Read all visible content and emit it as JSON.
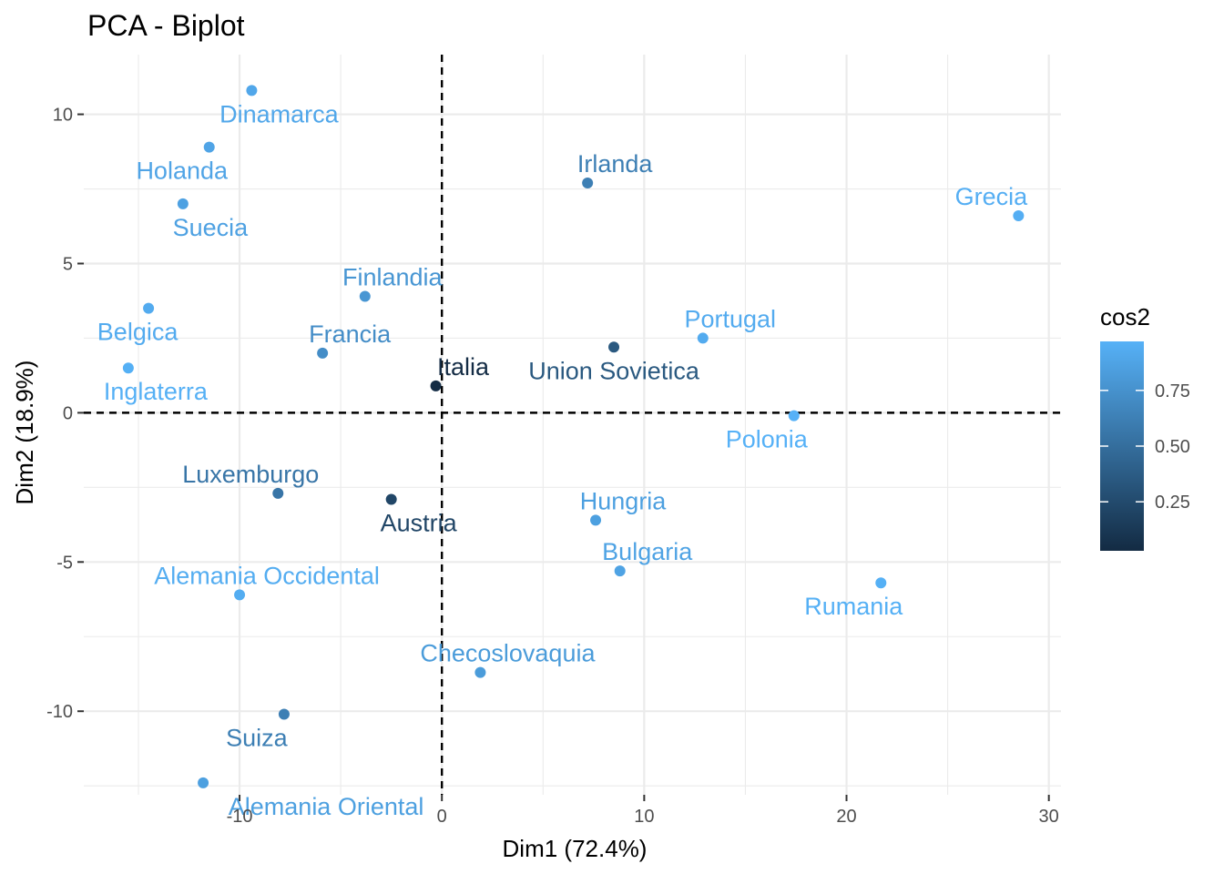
{
  "chart_data": {
    "type": "scatter",
    "title": "PCA - Biplot",
    "xlabel": "Dim1 (72.4%)",
    "ylabel": "Dim2 (18.9%)",
    "xlim": [
      -17.7,
      30.6
    ],
    "ylim": [
      -12.8,
      12.0
    ],
    "xticks": [
      -10,
      0,
      10,
      20,
      30
    ],
    "xtick_labels": [
      "-10",
      "0",
      "10",
      "20",
      "30"
    ],
    "yticks": [
      -10,
      -5,
      0,
      5,
      10
    ],
    "ytick_labels": [
      "-10",
      "-5",
      "0",
      "5",
      "10"
    ],
    "grid": true,
    "reference_lines": {
      "x": 0,
      "y": 0,
      "style": "dashed"
    },
    "color_variable": "cos2",
    "legend": {
      "title": "cos2",
      "position": "right",
      "type": "colorbar",
      "range": [
        0.03,
        0.97
      ],
      "ticks": [
        0.25,
        0.5,
        0.75
      ],
      "tick_labels": [
        "0.25",
        "0.50",
        "0.75"
      ],
      "color_low": "#132B43",
      "color_high": "#56B1F7"
    },
    "points": [
      {
        "label": "Dinamarca",
        "x": -9.4,
        "y": 10.8,
        "cos2": 0.9
      },
      {
        "label": "Holanda",
        "x": -11.5,
        "y": 8.9,
        "cos2": 0.88
      },
      {
        "label": "Suecia",
        "x": -12.8,
        "y": 7.0,
        "cos2": 0.86
      },
      {
        "label": "Belgica",
        "x": -14.5,
        "y": 3.5,
        "cos2": 0.93
      },
      {
        "label": "Inglaterra",
        "x": -15.5,
        "y": 1.5,
        "cos2": 0.96
      },
      {
        "label": "Finlandia",
        "x": -3.8,
        "y": 3.9,
        "cos2": 0.78
      },
      {
        "label": "Francia",
        "x": -5.9,
        "y": 2.0,
        "cos2": 0.72
      },
      {
        "label": "Italia",
        "x": -0.3,
        "y": 0.9,
        "cos2": 0.04
      },
      {
        "label": "Luxemburgo",
        "x": -8.1,
        "y": -2.7,
        "cos2": 0.55
      },
      {
        "label": "Austria",
        "x": -2.5,
        "y": -2.9,
        "cos2": 0.22
      },
      {
        "label": "Alemania Occidental",
        "x": -10.0,
        "y": -6.1,
        "cos2": 0.94
      },
      {
        "label": "Suiza",
        "x": -7.8,
        "y": -10.1,
        "cos2": 0.62
      },
      {
        "label": "Alemania Oriental",
        "x": -11.8,
        "y": -12.4,
        "cos2": 0.85
      },
      {
        "label": "Checoslovaquia",
        "x": 1.9,
        "y": -8.7,
        "cos2": 0.82
      },
      {
        "label": "Irlanda",
        "x": 7.2,
        "y": 7.7,
        "cos2": 0.62
      },
      {
        "label": "Union Sovietica",
        "x": 8.5,
        "y": 2.2,
        "cos2": 0.35
      },
      {
        "label": "Portugal",
        "x": 12.9,
        "y": 2.5,
        "cos2": 0.93
      },
      {
        "label": "Grecia",
        "x": 28.5,
        "y": 6.6,
        "cos2": 0.95
      },
      {
        "label": "Polonia",
        "x": 17.4,
        "y": -0.1,
        "cos2": 0.97
      },
      {
        "label": "Hungria",
        "x": 7.6,
        "y": -3.6,
        "cos2": 0.85
      },
      {
        "label": "Bulgaria",
        "x": 8.8,
        "y": -5.3,
        "cos2": 0.87
      },
      {
        "label": "Rumania",
        "x": 21.7,
        "y": -5.7,
        "cos2": 0.96
      }
    ]
  }
}
